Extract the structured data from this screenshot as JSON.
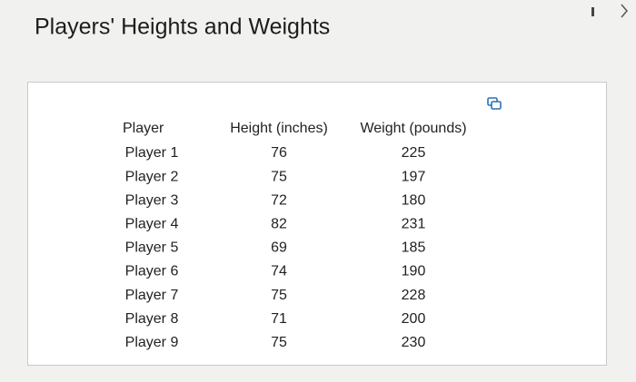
{
  "title": "Players' Heights and Weights",
  "table": {
    "header": [
      "Player",
      "Height (inches)",
      "Weight (pounds)"
    ],
    "rows": [
      [
        "Player 1",
        76,
        225
      ],
      [
        "Player 2",
        75,
        197
      ],
      [
        "Player 3",
        72,
        180
      ],
      [
        "Player 4",
        82,
        231
      ],
      [
        "Player 5",
        69,
        185
      ],
      [
        "Player 6",
        74,
        190
      ],
      [
        "Player 7",
        75,
        228
      ],
      [
        "Player 8",
        71,
        200
      ],
      [
        "Player 9",
        75,
        230
      ]
    ]
  }
}
